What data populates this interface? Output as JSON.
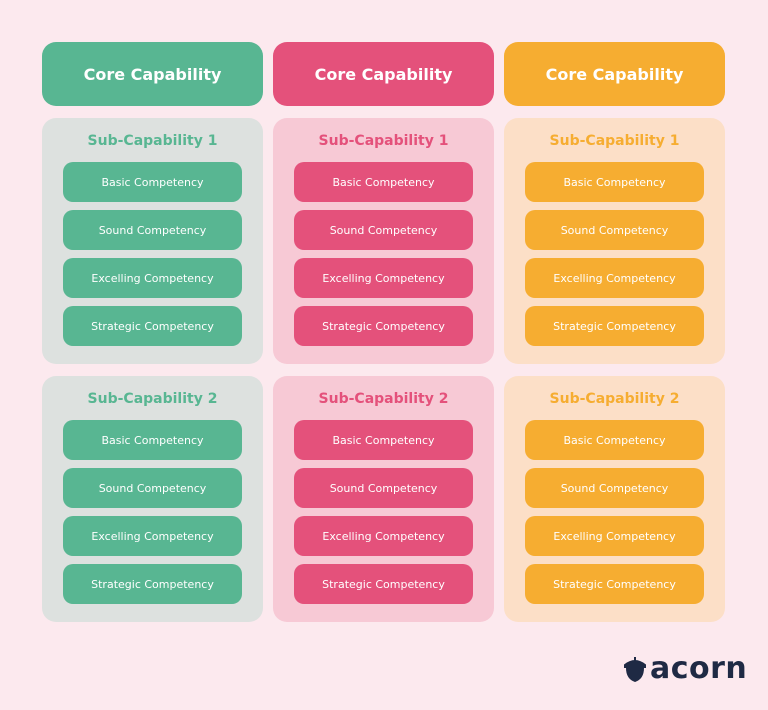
{
  "columns": [
    {
      "title": "Core Capability",
      "sub_capabilities": [
        {
          "title": "Sub-Capability 1",
          "competencies": [
            "Basic Competency",
            "Sound Competency",
            "Excelling Competency",
            "Strategic Competency"
          ]
        },
        {
          "title": "Sub-Capability 2",
          "competencies": [
            "Basic Competency",
            "Sound Competency",
            "Excelling Competency",
            "Strategic Competency"
          ]
        }
      ]
    },
    {
      "title": "Core Capability",
      "sub_capabilities": [
        {
          "title": "Sub-Capability 1",
          "competencies": [
            "Basic Competency",
            "Sound Competency",
            "Excelling Competency",
            "Strategic Competency"
          ]
        },
        {
          "title": "Sub-Capability 2",
          "competencies": [
            "Basic Competency",
            "Sound Competency",
            "Excelling Competency",
            "Strategic Competency"
          ]
        }
      ]
    },
    {
      "title": "Core Capability",
      "sub_capabilities": [
        {
          "title": "Sub-Capability 1",
          "competencies": [
            "Basic Competency",
            "Sound Competency",
            "Excelling Competency",
            "Strategic Competency"
          ]
        },
        {
          "title": "Sub-Capability 2",
          "competencies": [
            "Basic Competency",
            "Sound Competency",
            "Excelling Competency",
            "Strategic Competency"
          ]
        }
      ]
    }
  ],
  "logo": {
    "text": "acorn"
  }
}
